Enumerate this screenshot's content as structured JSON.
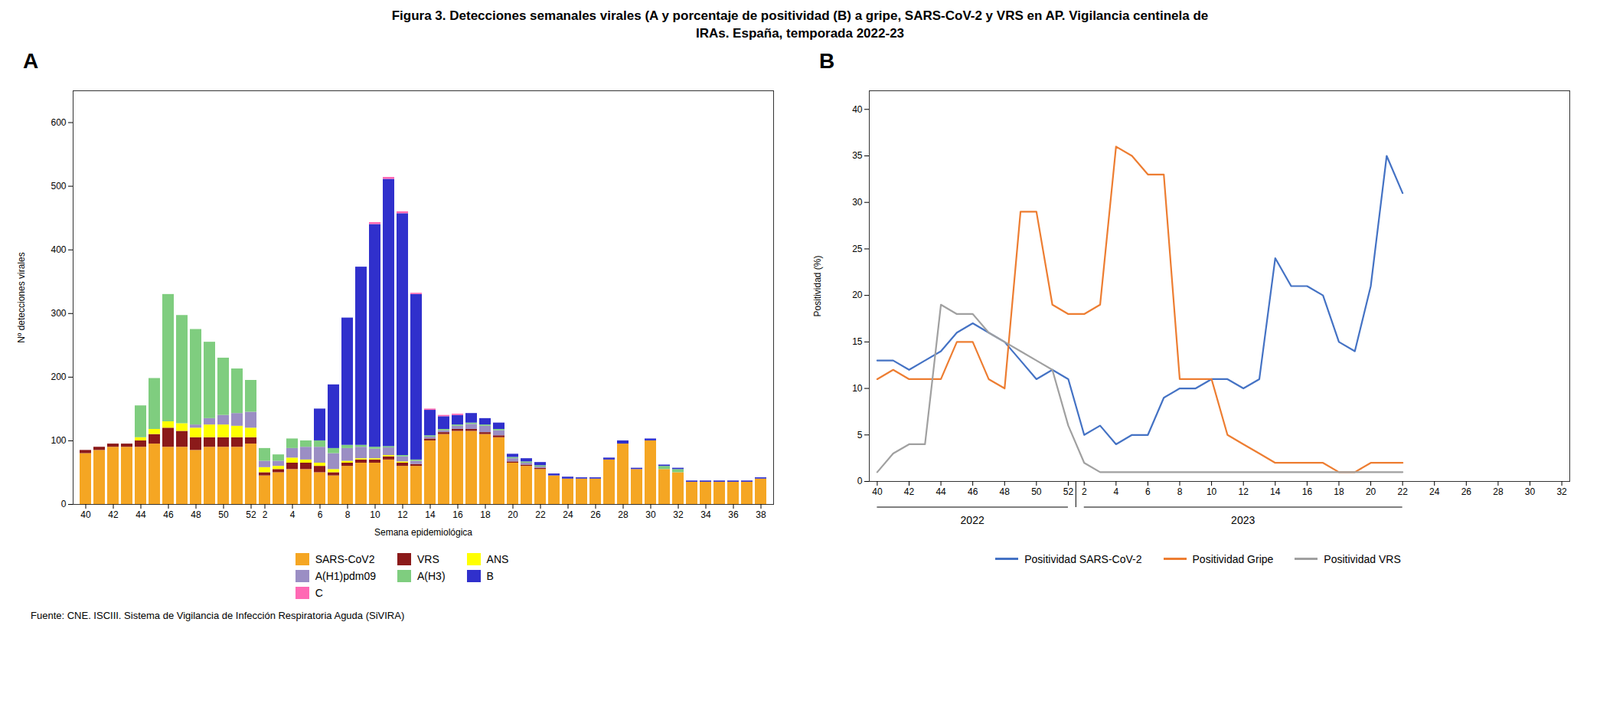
{
  "chart_data": [
    {
      "type": "bar",
      "stacked": true,
      "title": "Figura 3. Detecciones semanales virales (A y porcentaje de positividad (B) a gripe, SARS-CoV-2 y VRS en AP. Vigilancia centinela de",
      "subtitle": "IRAs.  España, temporada 2022-23",
      "caption": "Fuente: CNE. ISCIII. Sistema de Vigilancia de Infección Respiratoria Aguda (SiVIRA)",
      "annotations": [
        {
          "text": "A"
        }
      ],
      "xlabel": "Semana epidemiológica",
      "ylabel": "Nº detecciones virales",
      "categories": [
        "40",
        null,
        "42",
        null,
        "44",
        null,
        "46",
        null,
        "48",
        null,
        "50",
        null,
        "52",
        "2",
        null,
        "4",
        null,
        "6",
        null,
        "8",
        null,
        "10",
        null,
        "12",
        null,
        "14",
        null,
        "16",
        null,
        "18",
        null,
        "20",
        null,
        "22",
        null,
        "24",
        null,
        "26",
        null,
        "28",
        null,
        "30",
        null,
        "32",
        null,
        "34",
        null,
        "36",
        null,
        "38"
      ],
      "series": [
        {
          "name": "SARS-CoV2",
          "color": "#F5A623",
          "values": [
            80,
            85,
            90,
            90,
            90,
            95,
            90,
            90,
            85,
            90,
            90,
            90,
            95,
            45,
            50,
            55,
            55,
            50,
            45,
            60,
            65,
            65,
            70,
            60,
            60,
            100,
            110,
            115,
            115,
            110,
            105,
            65,
            60,
            55,
            45,
            40,
            40,
            40,
            70,
            95,
            55,
            100,
            55,
            50,
            35,
            35,
            35,
            35,
            35,
            40
          ]
        },
        {
          "name": "VRS",
          "color": "#8B1A1A",
          "values": [
            5,
            5,
            5,
            5,
            10,
            15,
            30,
            25,
            20,
            15,
            15,
            15,
            10,
            5,
            5,
            10,
            10,
            10,
            5,
            5,
            5,
            5,
            5,
            5,
            3,
            3,
            3,
            3,
            3,
            3,
            3,
            2,
            2,
            2,
            0,
            0,
            0,
            0,
            0,
            0,
            0,
            0,
            0,
            0,
            0,
            0,
            0,
            0,
            0,
            0
          ]
        },
        {
          "name": "ANS",
          "color": "#FFFF00",
          "values": [
            0,
            0,
            0,
            0,
            5,
            8,
            10,
            12,
            15,
            20,
            20,
            18,
            15,
            8,
            5,
            8,
            5,
            5,
            5,
            3,
            2,
            2,
            2,
            2,
            0,
            0,
            0,
            0,
            0,
            0,
            0,
            0,
            0,
            0,
            0,
            0,
            0,
            0,
            0,
            0,
            0,
            0,
            0,
            0,
            0,
            0,
            0,
            0,
            0,
            0
          ]
        },
        {
          "name": "A(H1)pdm09",
          "color": "#9B8EC4",
          "values": [
            0,
            0,
            0,
            0,
            0,
            0,
            0,
            0,
            5,
            10,
            15,
            20,
            25,
            10,
            8,
            15,
            20,
            25,
            25,
            20,
            18,
            15,
            12,
            8,
            5,
            3,
            3,
            5,
            8,
            10,
            8,
            5,
            3,
            2,
            0,
            0,
            0,
            0,
            0,
            0,
            0,
            0,
            0,
            0,
            0,
            0,
            0,
            0,
            0,
            0
          ]
        },
        {
          "name": "A(H3)",
          "color": "#7FCD7F",
          "values": [
            0,
            0,
            0,
            0,
            50,
            80,
            200,
            170,
            150,
            120,
            90,
            70,
            50,
            20,
            10,
            15,
            10,
            10,
            8,
            5,
            3,
            3,
            2,
            2,
            2,
            2,
            2,
            2,
            2,
            2,
            2,
            2,
            2,
            2,
            0,
            0,
            0,
            0,
            0,
            0,
            0,
            0,
            5,
            5,
            0,
            0,
            0,
            0,
            0,
            0
          ]
        },
        {
          "name": "B",
          "color": "#3030CC",
          "values": [
            0,
            0,
            0,
            0,
            0,
            0,
            0,
            0,
            0,
            0,
            0,
            0,
            0,
            0,
            0,
            0,
            0,
            50,
            100,
            200,
            280,
            350,
            420,
            380,
            260,
            40,
            20,
            15,
            15,
            10,
            10,
            5,
            5,
            5,
            3,
            3,
            2,
            2,
            3,
            5,
            2,
            3,
            2,
            2,
            2,
            2,
            2,
            2,
            2,
            2
          ]
        },
        {
          "name": "C",
          "color": "#FF69B4",
          "values": [
            0,
            0,
            0,
            0,
            0,
            0,
            0,
            0,
            0,
            0,
            0,
            0,
            0,
            0,
            0,
            0,
            0,
            0,
            0,
            0,
            0,
            3,
            3,
            3,
            2,
            2,
            2,
            2,
            0,
            0,
            0,
            0,
            0,
            0,
            0,
            0,
            0,
            0,
            0,
            0,
            0,
            0,
            0,
            0,
            0,
            0,
            0,
            0,
            0,
            0
          ]
        }
      ],
      "ylim": [
        0,
        650
      ],
      "yticks": [
        0,
        100,
        200,
        300,
        400,
        500,
        600
      ],
      "legend": "bottom"
    },
    {
      "type": "line",
      "annotations": [
        {
          "text": "B"
        },
        {
          "text": "2022",
          "x": [
            "40",
            "52"
          ]
        },
        {
          "text": "2023",
          "x": [
            "2",
            "22"
          ]
        }
      ],
      "ylabel": "Positividad (%)",
      "categories": [
        "40",
        null,
        "42",
        null,
        "44",
        null,
        "46",
        null,
        "48",
        null,
        "50",
        null,
        "52",
        "2",
        null,
        "4",
        null,
        "6",
        null,
        "8",
        null,
        "10",
        null,
        "12",
        null,
        "14",
        null,
        "16",
        null,
        "18",
        null,
        "20",
        null,
        "22",
        null,
        "24",
        null,
        "26",
        null,
        "28",
        null,
        "30",
        null,
        "32"
      ],
      "series": [
        {
          "name": "Positividad SARS-CoV-2",
          "color": "#4472C4",
          "values": [
            13,
            13,
            12,
            13,
            14,
            16,
            17,
            16,
            15,
            13,
            11,
            12,
            11,
            5,
            6,
            4,
            5,
            5,
            9,
            10,
            10,
            11,
            11,
            10,
            11,
            24,
            21,
            21,
            20,
            15,
            14,
            21,
            35,
            31,
            null,
            null,
            null,
            null,
            null,
            null,
            null,
            null,
            null,
            null
          ]
        },
        {
          "name": "Positividad Gripe",
          "color": "#ED7D31",
          "values": [
            11,
            12,
            11,
            11,
            11,
            15,
            15,
            11,
            10,
            29,
            29,
            19,
            18,
            18,
            19,
            36,
            35,
            33,
            33,
            11,
            11,
            11,
            5,
            4,
            3,
            2,
            2,
            2,
            2,
            1,
            1,
            2,
            2,
            2,
            null,
            null,
            null,
            null,
            null,
            null,
            null,
            null,
            null,
            null
          ]
        },
        {
          "name": "Positividad VRS",
          "color": "#A0A0A0",
          "values": [
            1,
            3,
            4,
            4,
            19,
            18,
            18,
            16,
            15,
            14,
            13,
            12,
            6,
            2,
            1,
            1,
            1,
            1,
            1,
            1,
            1,
            1,
            1,
            1,
            1,
            1,
            1,
            1,
            1,
            1,
            1,
            1,
            1,
            1,
            null,
            null,
            null,
            null,
            null,
            null,
            null,
            null,
            null,
            null
          ]
        }
      ],
      "ylim": [
        0,
        42
      ],
      "yticks": [
        0,
        5,
        10,
        15,
        20,
        25,
        30,
        35,
        40
      ],
      "legend": "bottom"
    }
  ]
}
